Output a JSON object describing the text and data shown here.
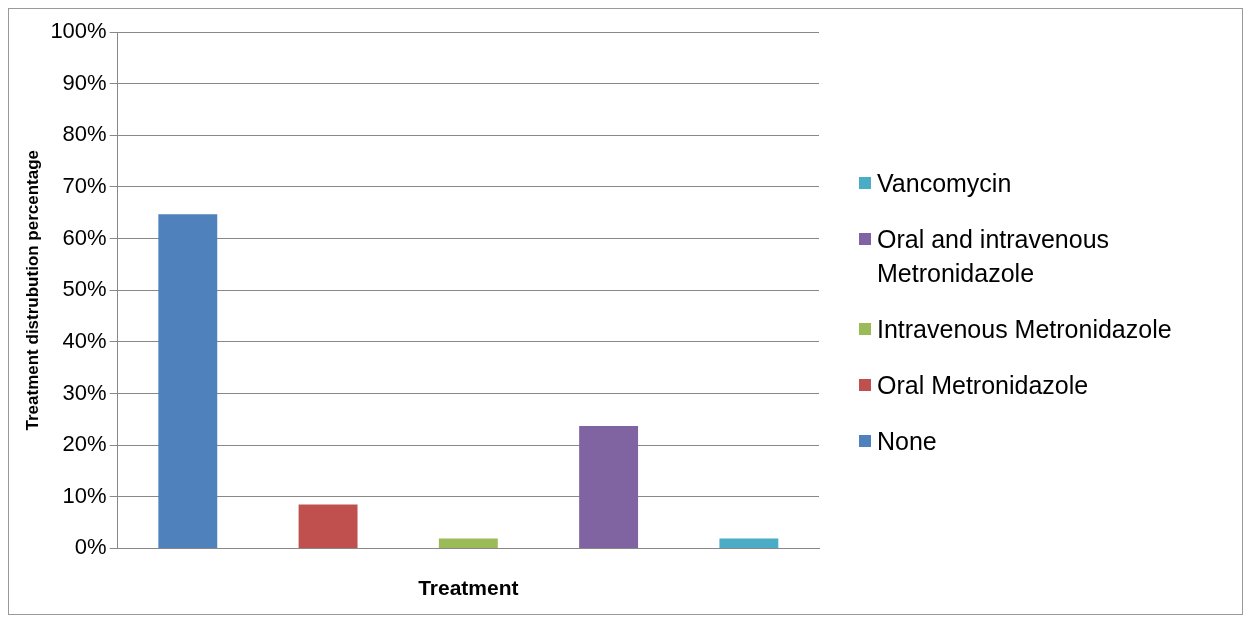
{
  "chart_data": {
    "type": "bar",
    "xlabel": "Treatment",
    "ylabel": "Treatment distrubution percentage",
    "categories": [
      null
    ],
    "series": [
      {
        "name": "None",
        "color": "#4f81bd",
        "values": [
          64.7
        ]
      },
      {
        "name": "Oral Metronidazole",
        "color": "#c0504d",
        "values": [
          8.5
        ]
      },
      {
        "name": "Intravenous Metronidazole",
        "color": "#9bbb59",
        "values": [
          1.9
        ]
      },
      {
        "name": "Oral and intravenous Metronidazole",
        "color": "#8064a2",
        "values": [
          23.7
        ]
      },
      {
        "name": "Vancomycin",
        "color": "#4bacc6",
        "values": [
          1.9
        ]
      }
    ],
    "ylim": [
      0,
      100
    ],
    "yticks": [
      {
        "value": 0,
        "label": "0%"
      },
      {
        "value": 10,
        "label": "10%"
      },
      {
        "value": 20,
        "label": "20%"
      },
      {
        "value": 30,
        "label": "30%"
      },
      {
        "value": 40,
        "label": "40%"
      },
      {
        "value": 50,
        "label": "50%"
      },
      {
        "value": 60,
        "label": "60%"
      },
      {
        "value": 70,
        "label": "70%"
      },
      {
        "value": 80,
        "label": "80%"
      },
      {
        "value": 90,
        "label": "90%"
      },
      {
        "value": 100,
        "label": "100%"
      }
    ],
    "grid": "y",
    "legend": "right"
  }
}
